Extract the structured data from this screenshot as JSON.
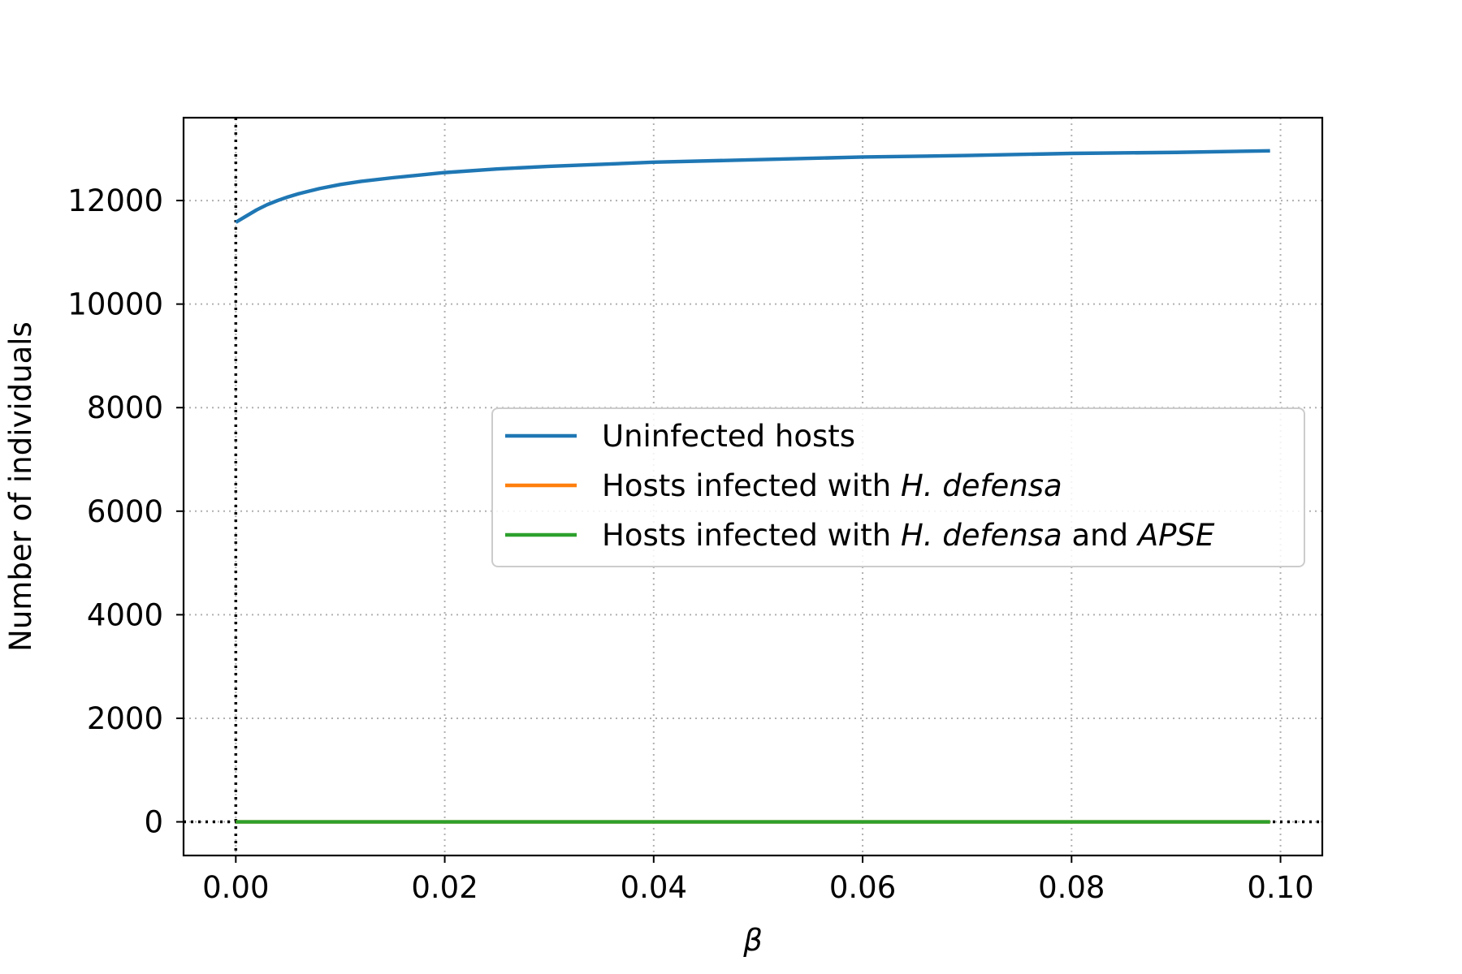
{
  "chart_data": {
    "type": "line",
    "xlabel": "β",
    "ylabel": "Number of individuals",
    "xlim": [
      -0.005,
      0.104
    ],
    "ylim": [
      -650,
      13600
    ],
    "x_ticks": [
      0.0,
      0.02,
      0.04,
      0.06,
      0.08,
      0.1
    ],
    "x_tick_labels": [
      "0.00",
      "0.02",
      "0.04",
      "0.06",
      "0.08",
      "0.10"
    ],
    "y_ticks": [
      0,
      2000,
      4000,
      6000,
      8000,
      10000,
      12000
    ],
    "y_tick_labels": [
      "0",
      "2000",
      "4000",
      "6000",
      "8000",
      "10000",
      "12000"
    ],
    "grid": true,
    "legend_position": "center-right",
    "reference_lines": {
      "vertical_x": 0.0,
      "horizontal_y": 0
    },
    "series": [
      {
        "name": "Uninfected hosts",
        "color": "#1f77b4",
        "x": [
          0.0,
          0.001,
          0.002,
          0.003,
          0.004,
          0.005,
          0.006,
          0.008,
          0.01,
          0.012,
          0.015,
          0.02,
          0.025,
          0.03,
          0.035,
          0.04,
          0.05,
          0.06,
          0.07,
          0.08,
          0.09,
          0.099
        ],
        "y": [
          11580,
          11700,
          11820,
          11920,
          12000,
          12070,
          12130,
          12230,
          12310,
          12370,
          12440,
          12540,
          12610,
          12660,
          12700,
          12740,
          12790,
          12840,
          12870,
          12910,
          12930,
          12960
        ]
      },
      {
        "name": "Hosts infected with H. defensa",
        "name_parts": [
          {
            "text": "Hosts infected with ",
            "italic": false
          },
          {
            "text": "H. defensa",
            "italic": true
          }
        ],
        "color": "#ff7f0e",
        "x": [
          0.0,
          0.099
        ],
        "y": [
          0,
          0
        ]
      },
      {
        "name": "Hosts infected with H. defensa and APSE",
        "name_parts": [
          {
            "text": "Hosts infected with ",
            "italic": false
          },
          {
            "text": "H. defensa",
            "italic": true
          },
          {
            "text": " and ",
            "italic": false
          },
          {
            "text": "APSE",
            "italic": true
          }
        ],
        "color": "#2ca02c",
        "x": [
          0.0,
          0.099
        ],
        "y": [
          0,
          0
        ]
      }
    ]
  }
}
